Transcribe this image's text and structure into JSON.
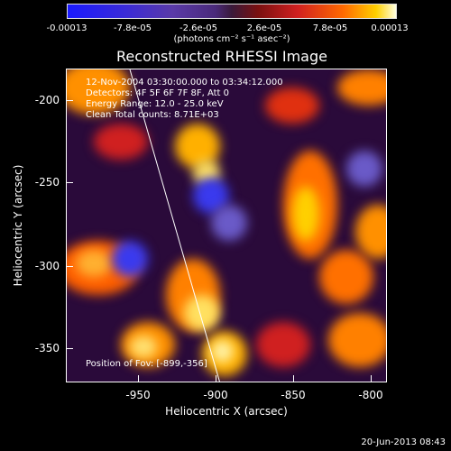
{
  "colorbar": {
    "ticks": [
      "-0.00013",
      "-7.8e-05",
      "-2.6e-05",
      "2.6e-05",
      "7.8e-05",
      "0.00013"
    ],
    "units": "(photons cm⁻² s⁻¹ asec⁻²)"
  },
  "title": "Reconstructed RHESSI Image",
  "info_lines": [
    "12-Nov-2004 03:30:00.000 to 03:34:12.000",
    "Detectors: 4F 5F 6F 7F 8F, Att 0",
    "Energy Range: 12.0 - 25.0 keV",
    "Clean    Total counts: 8.71E+03"
  ],
  "position_text": "Position of Fov: [-899,-356]",
  "axes": {
    "xlabel": "Heliocentric X (arcsec)",
    "ylabel": "Heliocentric Y (arcsec)",
    "xticks": [
      "-950",
      "-900",
      "-850",
      "-800"
    ],
    "yticks": [
      "-200",
      "-250",
      "-300",
      "-350"
    ]
  },
  "footer": "20-Jun-2013 08:43"
}
